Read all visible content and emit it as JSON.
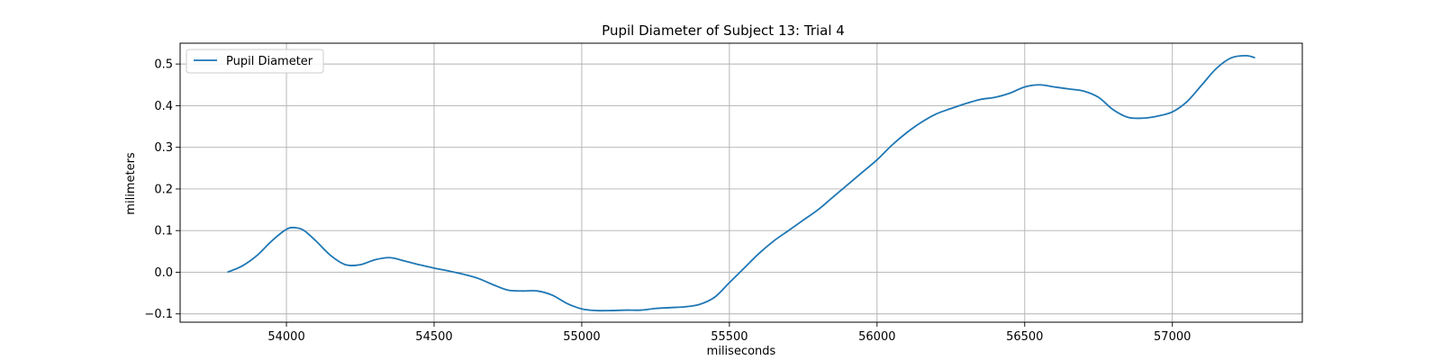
{
  "chart_data": {
    "type": "line",
    "title": "Pupil Diameter of Subject 13: Trial 4",
    "xlabel": "miliseconds",
    "ylabel": "milimeters",
    "xlim": [
      53640,
      57440
    ],
    "ylim": [
      -0.12,
      0.55
    ],
    "xticks": [
      54000,
      54500,
      55000,
      55500,
      56000,
      56500,
      57000
    ],
    "yticks": [
      -0.1,
      0.0,
      0.1,
      0.2,
      0.3,
      0.4,
      0.5
    ],
    "ytick_labels": [
      "−0.1",
      "0.0",
      "0.1",
      "0.2",
      "0.3",
      "0.4",
      "0.5"
    ],
    "grid": true,
    "legend_position": "upper-left",
    "colors": {
      "series": "#1f77b4"
    },
    "series": [
      {
        "name": "Pupil Diameter",
        "x": [
          53800,
          53850,
          53900,
          53950,
          54000,
          54030,
          54060,
          54100,
          54150,
          54200,
          54250,
          54300,
          54350,
          54400,
          54450,
          54500,
          54550,
          54600,
          54650,
          54700,
          54750,
          54800,
          54850,
          54900,
          54950,
          55000,
          55050,
          55100,
          55150,
          55200,
          55250,
          55300,
          55350,
          55400,
          55450,
          55500,
          55550,
          55600,
          55650,
          55700,
          55750,
          55800,
          55850,
          55900,
          55950,
          56000,
          56050,
          56100,
          56150,
          56200,
          56250,
          56300,
          56350,
          56400,
          56450,
          56500,
          56550,
          56600,
          56650,
          56700,
          56750,
          56800,
          56850,
          56900,
          56950,
          57000,
          57050,
          57100,
          57150,
          57200,
          57250,
          57280
        ],
        "y": [
          0.0,
          0.015,
          0.04,
          0.075,
          0.103,
          0.107,
          0.1,
          0.075,
          0.04,
          0.018,
          0.018,
          0.03,
          0.035,
          0.027,
          0.018,
          0.01,
          0.003,
          -0.005,
          -0.015,
          -0.03,
          -0.043,
          -0.045,
          -0.045,
          -0.055,
          -0.075,
          -0.088,
          -0.092,
          -0.092,
          -0.091,
          -0.091,
          -0.087,
          -0.085,
          -0.083,
          -0.077,
          -0.06,
          -0.025,
          0.01,
          0.045,
          0.075,
          0.1,
          0.125,
          0.15,
          0.18,
          0.21,
          0.24,
          0.27,
          0.305,
          0.335,
          0.36,
          0.38,
          0.393,
          0.405,
          0.415,
          0.42,
          0.43,
          0.445,
          0.45,
          0.445,
          0.44,
          0.435,
          0.42,
          0.39,
          0.372,
          0.37,
          0.375,
          0.385,
          0.41,
          0.45,
          0.49,
          0.515,
          0.52,
          0.515
        ]
      }
    ]
  }
}
